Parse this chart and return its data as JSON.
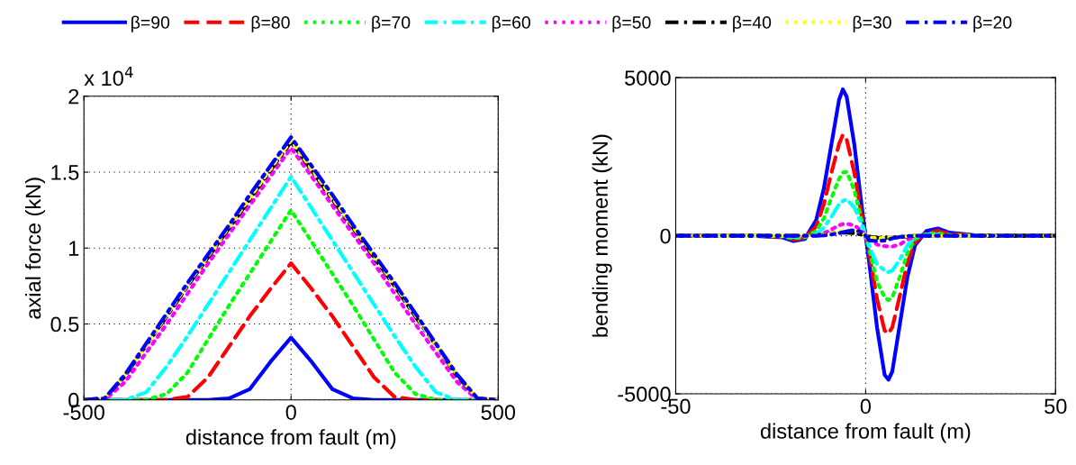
{
  "chart_data": [
    {
      "type": "line",
      "xlabel": "distance from fault (m)",
      "ylabel": "axial force (kN)",
      "annotations": [
        "x 10$^{4}$"
      ],
      "x": [
        -500,
        -450,
        -400,
        -350,
        -300,
        -250,
        -200,
        -150,
        -100,
        -50,
        0,
        50,
        100,
        150,
        200,
        250,
        300,
        350,
        400,
        450,
        500
      ],
      "xlim": [
        -500,
        500
      ],
      "xticks": [
        -500,
        0,
        500
      ],
      "ylim": [
        0,
        2
      ],
      "yticks": [
        0,
        0.5,
        1,
        1.5,
        2
      ],
      "grid": true,
      "legend": "top",
      "series": [
        {
          "name": "β=90",
          "color": "#0000ff",
          "line_style": "solid",
          "values": [
            0,
            0,
            0,
            0,
            0,
            0,
            0,
            0.01,
            0.07,
            0.25,
            0.41,
            0.25,
            0.07,
            0.01,
            0,
            0,
            0,
            0,
            0,
            0,
            0
          ]
        },
        {
          "name": "β=80",
          "color": "#ff0000",
          "line_style": "dashed",
          "values": [
            0,
            0,
            0,
            0,
            0,
            0.02,
            0.15,
            0.35,
            0.55,
            0.73,
            0.9,
            0.73,
            0.55,
            0.35,
            0.15,
            0.02,
            0,
            0,
            0,
            0,
            0
          ]
        },
        {
          "name": "β=70",
          "color": "#00ff00",
          "line_style": "dotted",
          "values": [
            0,
            0,
            0,
            0,
            0.04,
            0.18,
            0.4,
            0.62,
            0.83,
            1.04,
            1.25,
            1.04,
            0.83,
            0.62,
            0.4,
            0.18,
            0.04,
            0,
            0,
            0,
            0
          ]
        },
        {
          "name": "β=60",
          "color": "#00ffff",
          "line_style": "dashdot",
          "values": [
            0,
            0,
            0,
            0.05,
            0.22,
            0.42,
            0.63,
            0.84,
            1.05,
            1.26,
            1.47,
            1.26,
            1.05,
            0.84,
            0.63,
            0.42,
            0.22,
            0.05,
            0,
            0,
            0
          ]
        },
        {
          "name": "β=50",
          "color": "#ff00ff",
          "line_style": "dotted",
          "values": [
            0,
            0,
            0.12,
            0.31,
            0.5,
            0.7,
            0.9,
            1.09,
            1.28,
            1.47,
            1.66,
            1.47,
            1.28,
            1.09,
            0.9,
            0.7,
            0.5,
            0.31,
            0.12,
            0,
            0
          ]
        },
        {
          "name": "β=40",
          "color": "#000000",
          "line_style": "dashdot",
          "values": [
            0,
            0.01,
            0.16,
            0.36,
            0.55,
            0.75,
            0.94,
            1.13,
            1.32,
            1.51,
            1.7,
            1.51,
            1.32,
            1.13,
            0.94,
            0.75,
            0.55,
            0.36,
            0.16,
            0.01,
            0
          ]
        },
        {
          "name": "β=30",
          "color": "#ffff00",
          "line_style": "dotted",
          "values": [
            0,
            0.01,
            0.17,
            0.36,
            0.56,
            0.76,
            0.95,
            1.14,
            1.33,
            1.52,
            1.71,
            1.52,
            1.33,
            1.14,
            0.95,
            0.76,
            0.56,
            0.36,
            0.17,
            0.01,
            0
          ]
        },
        {
          "name": "β=20",
          "color": "#0000ff",
          "line_style": "dashdot",
          "values": [
            0,
            0.01,
            0.17,
            0.37,
            0.57,
            0.77,
            0.96,
            1.15,
            1.35,
            1.54,
            1.73,
            1.54,
            1.35,
            1.15,
            0.96,
            0.77,
            0.57,
            0.37,
            0.17,
            0.01,
            0
          ]
        }
      ]
    },
    {
      "type": "line",
      "xlabel": "distance from fault (m)",
      "ylabel": "bending moment (kN)",
      "x": [
        -50,
        -30,
        -22,
        -19,
        -16,
        -13,
        -11,
        -9,
        -7,
        -6,
        -5,
        -3,
        -1,
        0,
        1,
        3,
        5,
        6,
        7,
        9,
        11,
        13,
        16,
        19,
        22,
        30,
        50
      ],
      "xlim": [
        -50,
        50
      ],
      "xticks": [
        -50,
        0,
        50
      ],
      "ylim": [
        -5000,
        5000
      ],
      "yticks": [
        -5000,
        0,
        5000
      ],
      "grid": true,
      "legend": "top",
      "series": [
        {
          "name": "β=90",
          "color": "#0000ff",
          "line_style": "solid",
          "values": [
            0,
            0,
            -50,
            -170,
            -100,
            500,
            1500,
            2900,
            4300,
            4630,
            4400,
            2900,
            900,
            0,
            -900,
            -2900,
            -4400,
            -4550,
            -4300,
            -2800,
            -1300,
            -300,
            150,
            230,
            100,
            0,
            0
          ]
        },
        {
          "name": "β=80",
          "color": "#ff0000",
          "line_style": "dashed",
          "values": [
            0,
            0,
            -30,
            -120,
            -70,
            300,
            1000,
            2000,
            2900,
            3190,
            3050,
            2000,
            600,
            0,
            -600,
            -2000,
            -3000,
            -3090,
            -2900,
            -1900,
            -850,
            -200,
            100,
            150,
            60,
            0,
            0
          ]
        },
        {
          "name": "β=70",
          "color": "#00ff00",
          "line_style": "dotted",
          "values": [
            0,
            0,
            -20,
            -80,
            -50,
            150,
            550,
            1200,
            1800,
            2000,
            2020,
            1450,
            450,
            0,
            -450,
            -1450,
            -1950,
            -2040,
            -1950,
            -1300,
            -550,
            -100,
            60,
            80,
            30,
            0,
            0
          ]
        },
        {
          "name": "β=60",
          "color": "#00ffff",
          "line_style": "dashdot",
          "values": [
            0,
            0,
            -10,
            -40,
            -20,
            60,
            250,
            600,
            1000,
            1100,
            1150,
            900,
            350,
            0,
            -350,
            -900,
            -1100,
            -1150,
            -1100,
            -750,
            -300,
            -50,
            30,
            40,
            null,
            null,
            null
          ]
        },
        {
          "name": "β=50",
          "color": "#ff00ff",
          "line_style": "dotted",
          "values": [
            null,
            null,
            null,
            null,
            null,
            20,
            80,
            200,
            330,
            370,
            380,
            330,
            150,
            0,
            -100,
            -280,
            -330,
            -340,
            -340,
            -280,
            -120,
            -20,
            null,
            null,
            null,
            null,
            null
          ]
        },
        {
          "name": "β=40",
          "color": "#000000",
          "line_style": "dashdot",
          "values": [
            0,
            0,
            0,
            0,
            0,
            10,
            40,
            80,
            100,
            100,
            100,
            80,
            40,
            0,
            -30,
            -60,
            -60,
            -60,
            -50,
            -40,
            -20,
            0,
            0,
            0,
            0,
            0,
            0
          ]
        },
        {
          "name": "β=30",
          "color": "#ffff00",
          "line_style": "dotted",
          "values": [
            0,
            0,
            0,
            0,
            0,
            10,
            30,
            70,
            120,
            150,
            170,
            180,
            100,
            0,
            -50,
            -80,
            -70,
            -60,
            -50,
            -30,
            -10,
            0,
            0,
            0,
            0,
            0,
            0
          ]
        },
        {
          "name": "β=20",
          "color": "#0000ff",
          "line_style": "dashdot",
          "values": [
            0,
            0,
            0,
            0,
            0,
            0,
            10,
            40,
            80,
            110,
            140,
            180,
            120,
            0,
            -150,
            -170,
            -150,
            -120,
            -80,
            -40,
            -10,
            0,
            0,
            0,
            0,
            0,
            0
          ]
        }
      ]
    }
  ]
}
